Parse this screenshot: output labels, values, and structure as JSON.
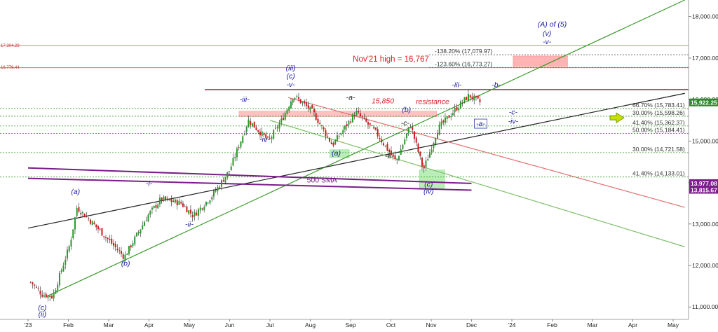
{
  "chart_data": {
    "type": "candlestick",
    "title": "",
    "xlabel": "",
    "ylabel": "",
    "ylim": [
      10700,
      18400
    ],
    "x_ticks": [
      "'23",
      "Feb",
      "Mar",
      "Apr",
      "May",
      "Jun",
      "Jul",
      "Aug",
      "Sep",
      "Oct",
      "Nov",
      "Dec",
      "'24",
      "Feb",
      "Mar",
      "Apr",
      "May"
    ],
    "y_ticks": [
      "11,000.00",
      "12,000.00",
      "13,000.00",
      "14,000.00",
      "15,000.00",
      "16,000.00",
      "17,000.00",
      "18,000.00"
    ],
    "grid": false,
    "price_series_approx": [
      {
        "date": "2023-01-03",
        "close": 11600
      },
      {
        "date": "2023-01-12",
        "close": 11300
      },
      {
        "date": "2023-01-20",
        "close": 11250
      },
      {
        "date": "2023-02-02",
        "close": 12500
      },
      {
        "date": "2023-02-07",
        "close": 13400
      },
      {
        "date": "2023-02-24",
        "close": 12800
      },
      {
        "date": "2023-03-13",
        "close": 12200
      },
      {
        "date": "2023-03-31",
        "close": 13200
      },
      {
        "date": "2023-04-10",
        "close": 13600
      },
      {
        "date": "2023-04-25",
        "close": 13500
      },
      {
        "date": "2023-05-04",
        "close": 13200
      },
      {
        "date": "2023-05-19",
        "close": 13700
      },
      {
        "date": "2023-06-01",
        "close": 14300
      },
      {
        "date": "2023-06-15",
        "close": 15500
      },
      {
        "date": "2023-06-30",
        "close": 15000
      },
      {
        "date": "2023-07-10",
        "close": 15500
      },
      {
        "date": "2023-07-19",
        "close": 16100
      },
      {
        "date": "2023-08-03",
        "close": 15700
      },
      {
        "date": "2023-08-18",
        "close": 14900
      },
      {
        "date": "2023-09-05",
        "close": 15700
      },
      {
        "date": "2023-09-20",
        "close": 15200
      },
      {
        "date": "2023-10-05",
        "close": 14500
      },
      {
        "date": "2023-10-16",
        "close": 15400
      },
      {
        "date": "2023-10-26",
        "close": 14300
      },
      {
        "date": "2023-11-06",
        "close": 15300
      },
      {
        "date": "2023-11-20",
        "close": 15800
      },
      {
        "date": "2023-11-29",
        "close": 16100
      },
      {
        "date": "2023-12-08",
        "close": 15922
      }
    ],
    "horizontal_levels": [
      {
        "y": 16767,
        "color": "#e05050"
      },
      {
        "y": 17304.29,
        "color": "#e05050"
      },
      {
        "y": 16240,
        "color": "#8b1a3a"
      }
    ],
    "dotted_levels": [
      {
        "label": "-138.20% (17,079.97)",
        "y": 17079.97
      },
      {
        "label": "-123.60% (16,773.27)",
        "y": 16773.27
      },
      {
        "label": "66.70% (15,783.41)",
        "y": 15783.41
      },
      {
        "label": "30.00% (15,598.26)",
        "y": 15598.26
      },
      {
        "label": "41.40% (15,362.37)",
        "y": 15362.37
      },
      {
        "label": "50.00% (15,184.41)",
        "y": 15184.41
      },
      {
        "label": "30.00% (14,721.58)",
        "y": 14721.58
      },
      {
        "label": "41.40% (14,133.01)",
        "y": 14133.01
      }
    ],
    "trendlines": [
      {
        "color": "#3a9a2a",
        "from": {
          "date": "2023-01-15",
          "y": 11250
        },
        "to": {
          "date": "2024-05-10",
          "y": 18400
        }
      },
      {
        "color": "#222222",
        "from": {
          "date": "2023-01-01",
          "y": 12900
        },
        "to": {
          "date": "2024-05-10",
          "y": 16150
        }
      },
      {
        "color": "#e07070",
        "from": {
          "date": "2023-07-15",
          "y": 16050
        },
        "to": {
          "date": "2024-05-10",
          "y": 13400
        }
      },
      {
        "color": "#7fbf6a",
        "from": {
          "date": "2023-07-01",
          "y": 15500
        },
        "to": {
          "date": "2024-05-10",
          "y": 12450
        }
      }
    ],
    "sma": {
      "label": "500 SMA",
      "color": "#7a1d8a",
      "upper": [
        {
          "date": "2023-01-01",
          "y": 14350
        },
        {
          "date": "2023-12-01",
          "y": 13977.08
        }
      ],
      "lower": [
        {
          "date": "2023-01-01",
          "y": 14100
        },
        {
          "date": "2023-12-01",
          "y": 13815.67
        }
      ]
    },
    "price_tags": [
      {
        "label": "15,922.25",
        "y": 15922.25,
        "color": "#2a8a2a"
      },
      {
        "label": "13,977.08",
        "y": 13977.08,
        "color": "#7a1d8a"
      },
      {
        "label": "13,815.67",
        "y": 13815.67,
        "color": "#7a1d8a"
      }
    ],
    "left_tags": [
      {
        "label": "17,304.29",
        "y": 17304.29
      },
      {
        "label": "16,779.44",
        "y": 16779.44
      }
    ],
    "annotations": [
      {
        "text": "(c)",
        "date": "2023-01-12",
        "y": 10930,
        "color": "#1a1aa0",
        "italic": true
      },
      {
        "text": "(ii)",
        "date": "2023-01-12",
        "y": 10770,
        "color": "#1a1aa0",
        "italic": true
      },
      {
        "text": "(a)",
        "date": "2023-02-06",
        "y": 13720,
        "color": "#1a1aa0",
        "italic": true
      },
      {
        "text": "(b)",
        "date": "2023-03-14",
        "y": 11990,
        "color": "#1a1aa0",
        "italic": true
      },
      {
        "text": "-i-",
        "date": "2023-04-01",
        "y": 13920,
        "color": "#1a1aa0",
        "italic": true
      },
      {
        "text": "-ii-",
        "date": "2023-05-01",
        "y": 12940,
        "color": "#1a1aa0",
        "italic": true
      },
      {
        "text": "-iii-",
        "date": "2023-06-12",
        "y": 15940,
        "color": "#1a1aa0",
        "italic": true
      },
      {
        "text": "-iv-",
        "date": "2023-06-27",
        "y": 14980,
        "color": "#1a1aa0",
        "italic": true
      },
      {
        "text": "(iii)",
        "date": "2023-07-17",
        "y": 16700,
        "color": "#1a1aa0",
        "italic": true
      },
      {
        "text": "(c)",
        "date": "2023-07-17",
        "y": 16510,
        "color": "#1a1aa0",
        "italic": true
      },
      {
        "text": "-v-",
        "date": "2023-07-17",
        "y": 16310,
        "color": "#1a1aa0",
        "italic": true
      },
      {
        "text": "(a)",
        "date": "2023-08-21",
        "y": 14650,
        "color": "#1a1aa0",
        "italic": true
      },
      {
        "text": "-a-",
        "date": "2023-09-01",
        "y": 15990,
        "color": "#222222",
        "italic": true
      },
      {
        "text": "-b-",
        "date": "2023-09-30",
        "y": 14580,
        "color": "#222222",
        "italic": true
      },
      {
        "text": "-c-",
        "date": "2023-10-12",
        "y": 15380,
        "color": "#222222",
        "italic": true
      },
      {
        "text": "(b)",
        "date": "2023-10-13",
        "y": 15700,
        "color": "#1a1aa0",
        "italic": true
      },
      {
        "text": "(c)",
        "date": "2023-10-30",
        "y": 13900,
        "color": "#1a1aa0",
        "italic": true
      },
      {
        "text": "(iv)",
        "date": "2023-10-30",
        "y": 13730,
        "color": "#1a1aa0",
        "italic": true
      },
      {
        "text": "-iii-",
        "date": "2023-11-20",
        "y": 16300,
        "color": "#1a1aa0",
        "italic": true
      },
      {
        "text": "-b-",
        "date": "2023-12-20",
        "y": 16300,
        "color": "#1a1aa0",
        "italic": true
      },
      {
        "text": "-a-",
        "date": "2023-12-08",
        "y": 15360,
        "color": "#1a1aa0",
        "italic": true
      },
      {
        "text": "-c-",
        "date": "2024-01-02",
        "y": 15640,
        "color": "#1a1aa0",
        "italic": true
      },
      {
        "text": "-iv-",
        "date": "2024-01-02",
        "y": 15420,
        "color": "#1a1aa0",
        "italic": true
      },
      {
        "text": "(A) of (5)",
        "date": "2024-02-01",
        "y": 17760,
        "color": "#1a1aa0",
        "italic": true
      },
      {
        "text": "(v)",
        "date": "2024-01-28",
        "y": 17540,
        "color": "#1a1aa0",
        "italic": true
      },
      {
        "text": "-v-",
        "date": "2024-01-28",
        "y": 17340,
        "color": "#1a1aa0",
        "italic": true
      },
      {
        "text": "Nov'21 high = 16,767",
        "date": "2023-10-01",
        "y": 16910,
        "color": "#e02020",
        "italic": false
      },
      {
        "text": "15,850",
        "date": "2023-09-25",
        "y": 15910,
        "color": "#e02020",
        "italic": true
      },
      {
        "text": "resistance",
        "date": "2023-11-02",
        "y": 15890,
        "color": "#e02020",
        "italic": true
      },
      {
        "text": "500 SMA",
        "date": "2023-08-10",
        "y": 14000,
        "color": "#7a1d8a",
        "italic": false
      }
    ],
    "zones": [
      {
        "color": "#ff8080",
        "opacity": 0.6,
        "from": {
          "date": "2024-01-02",
          "y": 17050
        },
        "to": {
          "date": "2024-02-12",
          "y": 16800
        }
      },
      {
        "color": "#ff9090",
        "opacity": 0.55,
        "from": {
          "date": "2023-06-08",
          "y": 15720
        },
        "to": {
          "date": "2023-11-05",
          "y": 15590
        }
      },
      {
        "color": "#7fe07f",
        "opacity": 0.55,
        "from": {
          "date": "2023-08-16",
          "y": 14790
        },
        "to": {
          "date": "2023-08-31",
          "y": 14600
        }
      },
      {
        "color": "#7fe07f",
        "opacity": 0.55,
        "from": {
          "date": "2023-10-23",
          "y": 14300
        },
        "to": {
          "date": "2023-11-11",
          "y": 13860
        }
      }
    ]
  }
}
